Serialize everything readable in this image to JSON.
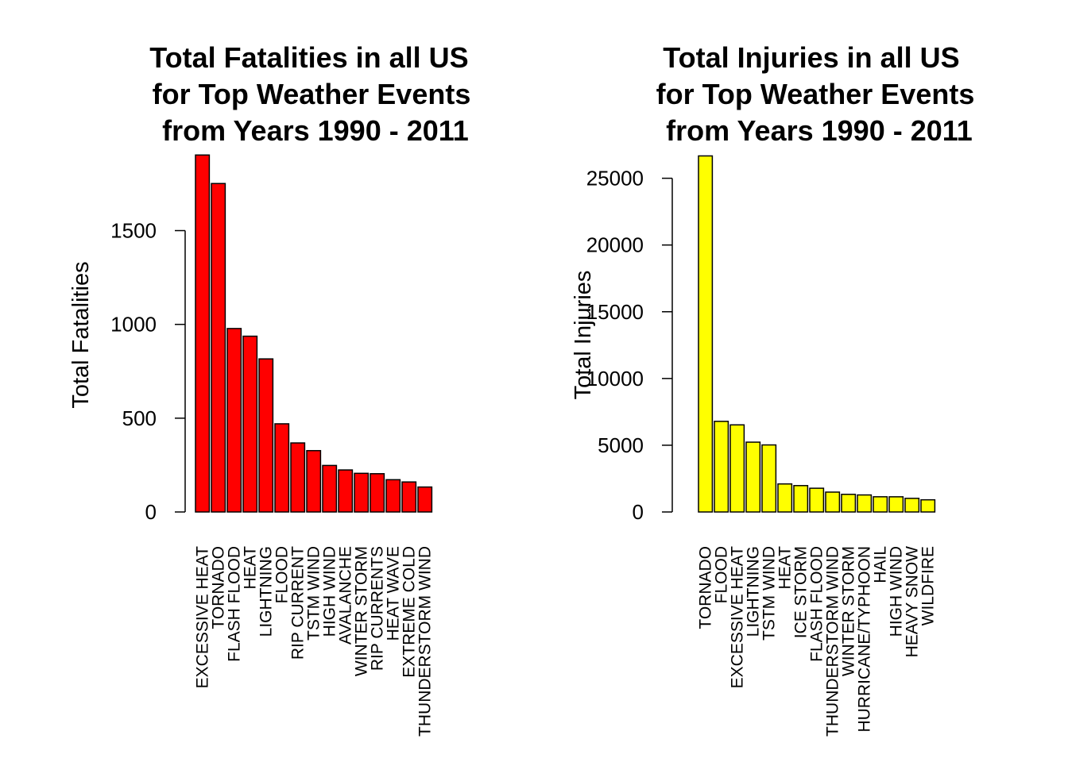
{
  "chart_data": [
    {
      "type": "bar",
      "title": [
        "Total Fatalities in all US",
        "for Top Weather Events",
        "from Years 1990 - 2011"
      ],
      "xlabel": "",
      "ylabel": "Total Fatalities",
      "ylim": [
        0,
        1900
      ],
      "yticks": [
        0,
        500,
        1000,
        1500
      ],
      "bar_color": "#ff0000",
      "categories": [
        "EXCESSIVE HEAT",
        "TORNADO",
        "FLASH FLOOD",
        "HEAT",
        "LIGHTNING",
        "FLOOD",
        "RIP CURRENT",
        "TSTM WIND",
        "HIGH WIND",
        "AVALANCHE",
        "WINTER STORM",
        "RIP CURRENTS",
        "HEAT WAVE",
        "EXTREME COLD",
        "THUNDERSTORM WIND"
      ],
      "values": [
        1903,
        1751,
        978,
        937,
        816,
        470,
        368,
        327,
        248,
        224,
        206,
        204,
        172,
        160,
        133
      ],
      "grid": false,
      "legend": "none"
    },
    {
      "type": "bar",
      "title": [
        "Total Injuries in all US",
        "for Top Weather Events",
        "from Years 1990 - 2011"
      ],
      "xlabel": "",
      "ylabel": "Total Injuries",
      "ylim": [
        0,
        26700
      ],
      "yticks": [
        0,
        5000,
        10000,
        15000,
        20000,
        25000
      ],
      "bar_color": "#ffff00",
      "categories": [
        "TORNADO",
        "FLOOD",
        "EXCESSIVE HEAT",
        "LIGHTNING",
        "TSTM WIND",
        "HEAT",
        "ICE STORM",
        "FLASH FLOOD",
        "THUNDERSTORM WIND",
        "WINTER STORM",
        "HURRICANE/TYPHOON",
        "HAIL",
        "HIGH WIND",
        "HEAVY SNOW",
        "WILDFIRE"
      ],
      "values": [
        26674,
        6789,
        6525,
        5230,
        5022,
        2100,
        1975,
        1777,
        1488,
        1321,
        1275,
        1139,
        1137,
        1021,
        911
      ],
      "grid": false,
      "legend": "none"
    }
  ]
}
